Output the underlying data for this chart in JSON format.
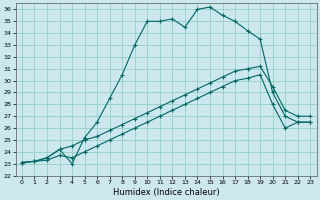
{
  "xlabel": "Humidex (Indice chaleur)",
  "bg_color": "#cce8ee",
  "grid_color": "#88ccbb",
  "line_color": "#006666",
  "ylim": [
    22,
    36.5
  ],
  "xlim": [
    -0.5,
    23.5
  ],
  "yticks": [
    22,
    23,
    24,
    25,
    26,
    27,
    28,
    29,
    30,
    31,
    32,
    33,
    34,
    35,
    36
  ],
  "xticks": [
    0,
    1,
    2,
    3,
    4,
    5,
    6,
    7,
    8,
    9,
    10,
    11,
    12,
    13,
    14,
    15,
    16,
    17,
    18,
    19,
    20,
    21,
    22,
    23
  ],
  "series1_x": [
    0,
    1,
    2,
    3,
    4,
    5,
    6,
    7,
    8,
    9,
    10,
    11,
    12,
    13,
    14,
    15,
    16,
    17,
    18,
    19,
    20,
    21,
    22,
    23
  ],
  "series1_y": [
    23.1,
    23.2,
    23.5,
    24.2,
    23.0,
    25.2,
    26.5,
    28.5,
    30.5,
    33.0,
    35.0,
    35.0,
    35.2,
    34.5,
    36.0,
    36.2,
    35.5,
    35.0,
    34.2,
    33.5,
    29.0,
    27.0,
    26.5,
    26.5
  ],
  "series2_x": [
    0,
    1,
    2,
    3,
    4,
    5,
    6,
    7,
    8,
    9,
    10,
    11,
    12,
    13,
    14,
    15,
    16,
    17,
    18,
    19,
    20,
    21,
    22,
    23
  ],
  "series2_y": [
    23.1,
    23.2,
    23.5,
    24.2,
    24.5,
    25.0,
    25.3,
    25.8,
    26.3,
    26.8,
    27.3,
    27.8,
    28.3,
    28.8,
    29.3,
    29.8,
    30.3,
    30.8,
    31.0,
    31.2,
    29.5,
    27.5,
    27.0,
    27.0
  ],
  "series3_x": [
    0,
    1,
    2,
    3,
    4,
    5,
    6,
    7,
    8,
    9,
    10,
    11,
    12,
    13,
    14,
    15,
    16,
    17,
    18,
    19,
    20,
    21,
    22,
    23
  ],
  "series3_y": [
    23.1,
    23.2,
    23.3,
    23.7,
    23.5,
    24.0,
    24.5,
    25.0,
    25.5,
    26.0,
    26.5,
    27.0,
    27.5,
    28.0,
    28.5,
    29.0,
    29.5,
    30.0,
    30.2,
    30.5,
    28.0,
    26.0,
    26.5,
    26.5
  ],
  "xlabel_fontsize": 6,
  "tick_fontsize": 4.5,
  "linewidth": 0.8,
  "markersize": 2.0
}
